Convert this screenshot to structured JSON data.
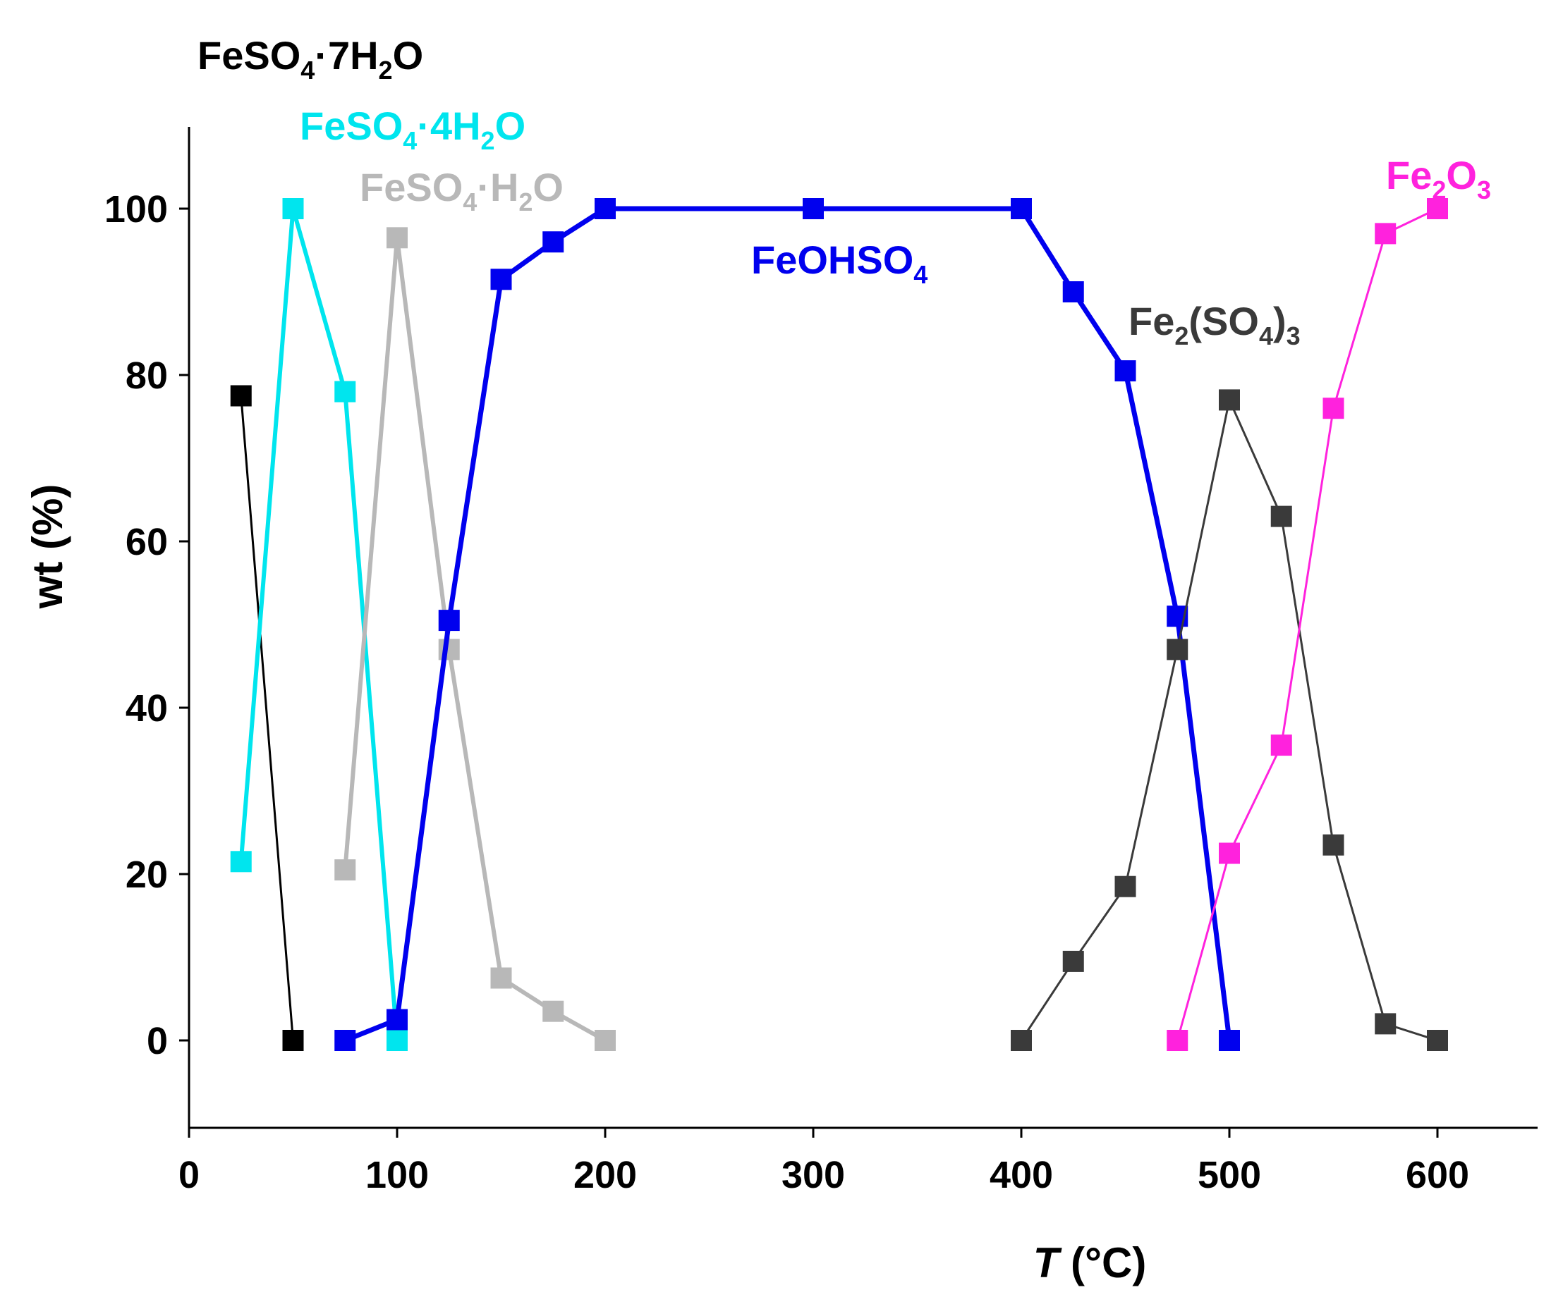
{
  "chart_data": {
    "type": "line",
    "title": "",
    "xlabel_symbol": "T",
    "xlabel_unit": " (°C)",
    "ylabel": "wt (%)",
    "xlim": [
      0,
      650
    ],
    "ylim": [
      -10,
      110
    ],
    "xticks": [
      0,
      100,
      200,
      300,
      400,
      500,
      600
    ],
    "yticks": [
      0,
      20,
      40,
      60,
      80,
      100
    ],
    "grid": false,
    "legend": "none",
    "series": [
      {
        "name": "FeSO4·7H2O",
        "label_parts": [
          "FeSO",
          "4",
          "·7H",
          "2",
          "O"
        ],
        "color": "#000000",
        "x": [
          25,
          50
        ],
        "y": [
          77.5,
          0
        ]
      },
      {
        "name": "FeSO4·4H2O",
        "label_parts": [
          "FeSO",
          "4",
          "·4H",
          "2",
          "O"
        ],
        "color": "#00e5ee",
        "x": [
          25,
          50,
          75,
          100
        ],
        "y": [
          21.5,
          100,
          78,
          0
        ]
      },
      {
        "name": "FeSO4·H2O",
        "label_parts": [
          "FeSO",
          "4",
          "·H",
          "2",
          "O"
        ],
        "color": "#b8b8b8",
        "x": [
          75,
          100,
          125,
          150,
          175,
          200
        ],
        "y": [
          20.5,
          96.5,
          47,
          7.5,
          3.5,
          0
        ]
      },
      {
        "name": "FeOHSO4",
        "label_parts": [
          "FeOHSO",
          "4"
        ],
        "color": "#0000ee",
        "x": [
          75,
          100,
          125,
          150,
          175,
          200,
          300,
          400,
          425,
          450,
          475,
          500
        ],
        "y": [
          0,
          2.5,
          50.5,
          91.5,
          96,
          100,
          100,
          100,
          90,
          80.5,
          51,
          0
        ]
      },
      {
        "name": "Fe2(SO4)3",
        "label_parts": [
          "Fe",
          "2",
          "(SO",
          "4",
          ")",
          "3"
        ],
        "color": "#3a3a3a",
        "x": [
          400,
          425,
          450,
          475,
          500,
          525,
          550,
          575,
          600
        ],
        "y": [
          0,
          9.5,
          18.5,
          47,
          77,
          63,
          23.5,
          2,
          0
        ]
      },
      {
        "name": "Fe2O3",
        "label_parts": [
          "Fe",
          "2",
          "O",
          "3"
        ],
        "color": "#ff22dd",
        "x": [
          475,
          500,
          525,
          550,
          575,
          600
        ],
        "y": [
          0,
          22.5,
          35.5,
          76,
          97,
          100
        ]
      }
    ]
  }
}
